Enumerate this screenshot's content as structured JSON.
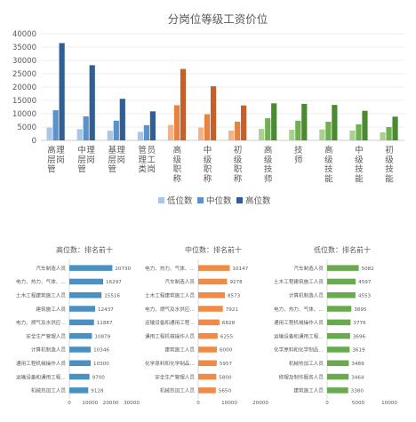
{
  "chart_data": [
    {
      "type": "bar",
      "title": "分岗位等级工资价位",
      "categories": [
        "高层管理岗",
        "中层管理岗",
        "基层管理岗",
        "管理类员工岗",
        "高级职称",
        "中级职称",
        "初级职称",
        "高级技师",
        "技师",
        "高级技能",
        "中级技能",
        "初级技能"
      ],
      "series": [
        {
          "name": "低位数",
          "values": [
            4800,
            4200,
            3600,
            3200,
            5800,
            4800,
            3700,
            4300,
            4000,
            4100,
            3700,
            3000
          ]
        },
        {
          "name": "中位数",
          "values": [
            11300,
            9000,
            7400,
            5700,
            13200,
            9800,
            7000,
            8300,
            7400,
            7000,
            6000,
            5000
          ]
        },
        {
          "name": "高位数",
          "values": [
            36500,
            28200,
            15600,
            10900,
            26800,
            20300,
            13100,
            13900,
            13700,
            13300,
            11100,
            8900
          ]
        }
      ],
      "colors": [
        "#a9c6e6",
        "#5b93c8",
        "#2f5f95",
        "#f2b38a",
        "#e8833f",
        "#c5602a",
        "#a9d08e",
        "#6fb04f",
        "#4a8a33"
      ],
      "ylim": [
        0,
        40000
      ],
      "yticks": [
        "40000",
        "35000",
        "30000",
        "25000",
        "20000",
        "15000",
        "10000",
        "5000",
        "0"
      ],
      "legend": "bottom"
    },
    {
      "type": "bar",
      "orientation": "horizontal",
      "title": "高位数：排名前十",
      "color": "#4a90c2",
      "categories": [
        "汽车制造人员",
        "电力、热力、气体、…",
        "土木工程建筑施工人员",
        "建筑施工人员",
        "电力、燃气及水供应…",
        "安全生产管理人员",
        "计算机制造人员",
        "通用工程机械操作人员",
        "运输设备和通用工程…",
        "机械热加工人员"
      ],
      "values": [
        20730,
        16297,
        15516,
        12437,
        11887,
        10879,
        10346,
        10300,
        9700,
        9128
      ],
      "labels": [
        "20730",
        "16297",
        "15516",
        "12437",
        "11887",
        "10879",
        "10346",
        "10300",
        "9700",
        "9128"
      ],
      "xlim": [
        0,
        30000
      ],
      "xticks": [
        "0",
        "10000",
        "20000",
        "30000"
      ]
    },
    {
      "type": "bar",
      "orientation": "horizontal",
      "title": "中位数：排名前十",
      "color": "#ef8a47",
      "categories": [
        "电力、热力、气体、…",
        "汽车制造人员",
        "土木工程建筑施工人员",
        "电力、燃气及水供应…",
        "运输设备和通用工程…",
        "通用工程机械操作人员",
        "建筑施工人员",
        "化学原料和化学制品…",
        "安全生产管理人员",
        "机械热加工人员"
      ],
      "values": [
        10147,
        9278,
        8573,
        7921,
        6828,
        6255,
        6000,
        5957,
        5800,
        5650
      ],
      "labels": [
        "10147",
        "9278",
        "8573",
        "7921",
        "6828",
        "6255",
        "6000",
        "5957",
        "5800",
        "5650"
      ],
      "xlim": [
        0,
        20000
      ],
      "xticks": [
        "0",
        "10000",
        "20000"
      ]
    },
    {
      "type": "bar",
      "orientation": "horizontal",
      "title": "低位数：排名前十",
      "color": "#6aaa4f",
      "categories": [
        "汽车制造人员",
        "土木工程建筑施工人员",
        "计算机制造人员",
        "电力、热力、气体、…",
        "通用工程机械操作人员",
        "运输设备和通用工程…",
        "化学原料和化学制品…",
        "机械热加工人员",
        "修理及制作服务人员",
        "建筑施工人员"
      ],
      "values": [
        5082,
        4597,
        4553,
        3895,
        3776,
        3696,
        3619,
        3489,
        3464,
        3380
      ],
      "labels": [
        "5082",
        "4597",
        "4553",
        "3895",
        "3776",
        "3696",
        "3619",
        "3489",
        "3464",
        "3380"
      ],
      "xlim": [
        0,
        10000
      ],
      "xticks": [
        "0",
        "5000",
        "10000"
      ]
    }
  ]
}
